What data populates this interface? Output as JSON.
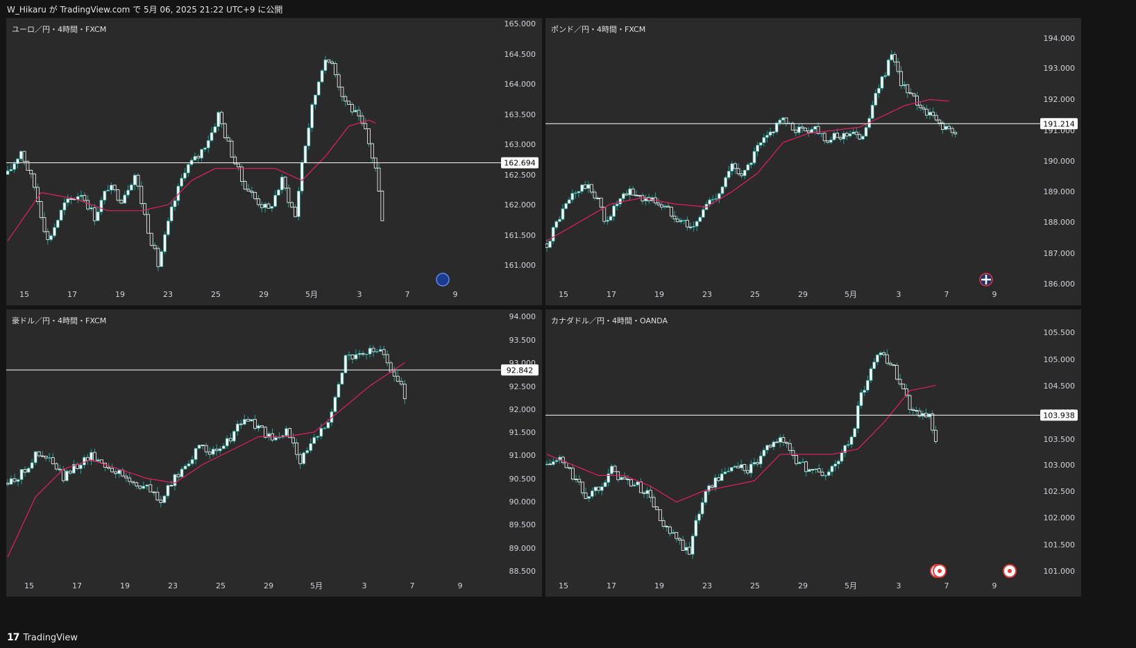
{
  "header": {
    "publish_text": "W_Hikaru が TradingView.com で 5月 06, 2025 21:22 UTC+9 に公開"
  },
  "footer": {
    "logo_icon": "tradingview-logo-icon",
    "brand": "TradingView"
  },
  "colors": {
    "background": "#141414",
    "pane": "#2a2a2a",
    "candle": "#ffffff",
    "candle_border": "#26a69a",
    "ma_line": "#e91e63",
    "price_line": "#ffffff",
    "text": "#d1d4dc"
  },
  "x_labels": [
    "15",
    "17",
    "19",
    "23",
    "25",
    "29",
    "5月",
    "3",
    "7",
    "9"
  ],
  "chart_data": [
    {
      "type": "candlestick",
      "title": "ユーロ／円・4時間・FXCM",
      "current_price": "162.694",
      "current_value": 162.694,
      "y_ticks": [
        "165.000",
        "164.500",
        "164.000",
        "163.500",
        "163.000",
        "162.500",
        "162.000",
        "161.500",
        "161.000"
      ],
      "ylim": [
        160.6,
        165.05
      ],
      "event_icon": "eu-flag-icon",
      "anchors": [
        [
          0,
          162.5
        ],
        [
          4,
          162.9
        ],
        [
          8,
          162.3
        ],
        [
          12,
          161.4
        ],
        [
          17,
          162.0
        ],
        [
          22,
          162.2
        ],
        [
          26,
          161.8
        ],
        [
          30,
          162.3
        ],
        [
          34,
          162.1
        ],
        [
          38,
          162.5
        ],
        [
          42,
          161.6
        ],
        [
          45,
          161.0
        ],
        [
          49,
          161.9
        ],
        [
          53,
          162.6
        ],
        [
          57,
          162.8
        ],
        [
          61,
          163.2
        ],
        [
          63,
          163.5
        ],
        [
          66,
          163.0
        ],
        [
          70,
          162.4
        ],
        [
          74,
          162.1
        ],
        [
          78,
          161.9
        ],
        [
          82,
          162.4
        ],
        [
          86,
          161.8
        ],
        [
          88,
          162.7
        ],
        [
          91,
          163.6
        ],
        [
          94,
          164.3
        ],
        [
          97,
          164.4
        ],
        [
          100,
          163.8
        ],
        [
          104,
          163.5
        ],
        [
          107,
          163.2
        ],
        [
          110,
          162.6
        ],
        [
          112,
          161.8
        ]
      ],
      "ma_anchors": [
        [
          0,
          161.4
        ],
        [
          10,
          162.2
        ],
        [
          20,
          162.1
        ],
        [
          30,
          161.9
        ],
        [
          40,
          161.9
        ],
        [
          48,
          162.0
        ],
        [
          55,
          162.4
        ],
        [
          62,
          162.6
        ],
        [
          70,
          162.6
        ],
        [
          80,
          162.6
        ],
        [
          88,
          162.4
        ],
        [
          95,
          162.8
        ],
        [
          102,
          163.3
        ],
        [
          108,
          163.4
        ],
        [
          110,
          163.35
        ]
      ]
    },
    {
      "type": "candlestick",
      "title": "ポンド／円・4時間・FXCM",
      "current_price": "191.214",
      "current_value": 191.214,
      "y_ticks": [
        "194.000",
        "193.000",
        "192.000",
        "191.000",
        "190.000",
        "189.000",
        "188.000",
        "187.000",
        "186.000"
      ],
      "ylim": [
        185.55,
        194.5
      ],
      "event_icon": "uk-flag-icon",
      "anchors": [
        [
          0,
          187.3
        ],
        [
          4,
          188.2
        ],
        [
          8,
          188.9
        ],
        [
          12,
          189.2
        ],
        [
          16,
          188.8
        ],
        [
          18,
          188.0
        ],
        [
          22,
          188.6
        ],
        [
          26,
          189.0
        ],
        [
          30,
          188.8
        ],
        [
          34,
          188.7
        ],
        [
          38,
          188.4
        ],
        [
          42,
          188.1
        ],
        [
          46,
          187.8
        ],
        [
          50,
          188.6
        ],
        [
          54,
          189.0
        ],
        [
          58,
          189.8
        ],
        [
          62,
          189.6
        ],
        [
          66,
          190.4
        ],
        [
          70,
          190.9
        ],
        [
          73,
          191.4
        ],
        [
          76,
          191.1
        ],
        [
          80,
          191.0
        ],
        [
          84,
          191.1
        ],
        [
          88,
          190.7
        ],
        [
          92,
          190.8
        ],
        [
          96,
          191.0
        ],
        [
          98,
          190.6
        ],
        [
          100,
          191.2
        ],
        [
          102,
          191.8
        ],
        [
          105,
          192.7
        ],
        [
          108,
          193.4
        ],
        [
          110,
          192.8
        ],
        [
          113,
          192.2
        ],
        [
          117,
          191.8
        ],
        [
          121,
          191.4
        ],
        [
          126,
          191.0
        ],
        [
          128,
          190.8
        ]
      ],
      "ma_anchors": [
        [
          0,
          187.4
        ],
        [
          10,
          188.0
        ],
        [
          20,
          188.6
        ],
        [
          30,
          188.8
        ],
        [
          40,
          188.6
        ],
        [
          50,
          188.5
        ],
        [
          58,
          189.0
        ],
        [
          66,
          189.6
        ],
        [
          74,
          190.6
        ],
        [
          82,
          190.9
        ],
        [
          90,
          191.0
        ],
        [
          98,
          191.1
        ],
        [
          106,
          191.5
        ],
        [
          112,
          191.8
        ],
        [
          120,
          192.0
        ],
        [
          126,
          191.95
        ]
      ]
    },
    {
      "type": "candlestick",
      "title": "豪ドル／円・4時間・FXCM",
      "current_price": "92.842",
      "current_value": 92.842,
      "y_ticks": [
        "94.000",
        "93.500",
        "93.000",
        "92.500",
        "92.000",
        "91.500",
        "91.000",
        "90.500",
        "90.000",
        "89.500",
        "89.000",
        "88.500"
      ],
      "ylim": [
        88.35,
        94.1
      ],
      "event_icon": "",
      "anchors": [
        [
          0,
          90.4
        ],
        [
          4,
          90.6
        ],
        [
          8,
          91.0
        ],
        [
          12,
          90.9
        ],
        [
          16,
          90.5
        ],
        [
          20,
          90.8
        ],
        [
          24,
          91.0
        ],
        [
          28,
          90.8
        ],
        [
          32,
          90.6
        ],
        [
          36,
          90.4
        ],
        [
          40,
          90.3
        ],
        [
          44,
          90.0
        ],
        [
          48,
          90.5
        ],
        [
          52,
          90.9
        ],
        [
          56,
          91.2
        ],
        [
          60,
          91.0
        ],
        [
          64,
          91.4
        ],
        [
          68,
          91.8
        ],
        [
          72,
          91.6
        ],
        [
          76,
          91.3
        ],
        [
          80,
          91.5
        ],
        [
          82,
          91.3
        ],
        [
          84,
          90.9
        ],
        [
          88,
          91.3
        ],
        [
          92,
          91.8
        ],
        [
          95,
          92.5
        ],
        [
          97,
          93.2
        ],
        [
          100,
          93.1
        ],
        [
          103,
          93.2
        ],
        [
          106,
          93.3
        ],
        [
          109,
          93.0
        ],
        [
          112,
          92.6
        ],
        [
          114,
          92.3
        ]
      ],
      "ma_anchors": [
        [
          0,
          88.8
        ],
        [
          8,
          90.1
        ],
        [
          16,
          90.7
        ],
        [
          24,
          90.9
        ],
        [
          32,
          90.7
        ],
        [
          40,
          90.5
        ],
        [
          48,
          90.4
        ],
        [
          56,
          90.8
        ],
        [
          64,
          91.1
        ],
        [
          72,
          91.4
        ],
        [
          80,
          91.4
        ],
        [
          88,
          91.5
        ],
        [
          96,
          92.0
        ],
        [
          104,
          92.5
        ],
        [
          110,
          92.8
        ],
        [
          114,
          93.0
        ]
      ]
    },
    {
      "type": "candlestick",
      "title": "カナダドル／円・4時間・OANDA",
      "current_price": "103.938",
      "current_value": 103.938,
      "y_ticks": [
        "105.500",
        "105.000",
        "104.500",
        "104.000",
        "103.500",
        "103.000",
        "102.500",
        "102.000",
        "101.500",
        "101.000"
      ],
      "ylim": [
        100.8,
        105.8
      ],
      "event_icon": "canada-flag-icon",
      "anchors": [
        [
          0,
          103.0
        ],
        [
          4,
          103.1
        ],
        [
          8,
          102.8
        ],
        [
          12,
          102.4
        ],
        [
          16,
          102.6
        ],
        [
          20,
          102.9
        ],
        [
          24,
          102.7
        ],
        [
          28,
          102.6
        ],
        [
          32,
          102.4
        ],
        [
          36,
          101.8
        ],
        [
          40,
          101.6
        ],
        [
          44,
          101.3
        ],
        [
          46,
          102.0
        ],
        [
          50,
          102.6
        ],
        [
          54,
          102.8
        ],
        [
          58,
          103.0
        ],
        [
          62,
          102.9
        ],
        [
          66,
          103.1
        ],
        [
          70,
          103.5
        ],
        [
          74,
          103.4
        ],
        [
          78,
          103.0
        ],
        [
          82,
          102.9
        ],
        [
          86,
          102.8
        ],
        [
          90,
          103.1
        ],
        [
          94,
          103.5
        ],
        [
          97,
          104.3
        ],
        [
          100,
          104.8
        ],
        [
          103,
          105.2
        ],
        [
          106,
          104.9
        ],
        [
          109,
          104.6
        ],
        [
          112,
          104.1
        ],
        [
          115,
          104.0
        ],
        [
          118,
          103.9
        ],
        [
          120,
          103.4
        ]
      ],
      "ma_anchors": [
        [
          0,
          103.2
        ],
        [
          8,
          103.0
        ],
        [
          16,
          102.8
        ],
        [
          24,
          102.8
        ],
        [
          32,
          102.6
        ],
        [
          40,
          102.3
        ],
        [
          48,
          102.5
        ],
        [
          56,
          102.6
        ],
        [
          64,
          102.7
        ],
        [
          72,
          103.2
        ],
        [
          80,
          103.2
        ],
        [
          88,
          103.2
        ],
        [
          96,
          103.3
        ],
        [
          104,
          103.8
        ],
        [
          112,
          104.4
        ],
        [
          120,
          104.5
        ]
      ]
    }
  ]
}
